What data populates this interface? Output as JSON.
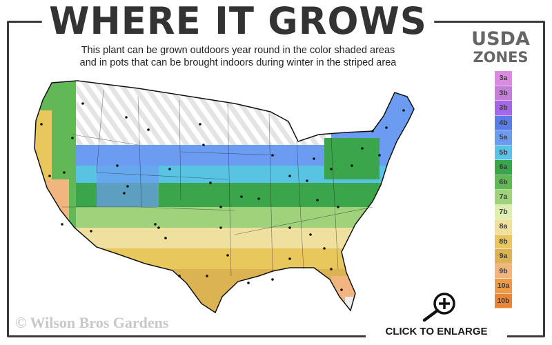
{
  "header": {
    "title": "WHERE IT GROWS",
    "subtitle_line1": "This plant can be grown outdoors year round in the color shaded areas",
    "subtitle_line2": "and in pots that can be brought indoors during winter in the striped area"
  },
  "legend": {
    "title_line1": "USDA",
    "title_line2": "ZONES",
    "zones": [
      {
        "label": "3a",
        "color": "#d98be0"
      },
      {
        "label": "3b",
        "color": "#c47fd6"
      },
      {
        "label": "3b",
        "color": "#a566ee"
      },
      {
        "label": "4b",
        "color": "#5a7be8"
      },
      {
        "label": "5a",
        "color": "#6b9cf2"
      },
      {
        "label": "5b",
        "color": "#58c3e2"
      },
      {
        "label": "6a",
        "color": "#3aa54a"
      },
      {
        "label": "6b",
        "color": "#62b857"
      },
      {
        "label": "7a",
        "color": "#9fd27a"
      },
      {
        "label": "7b",
        "color": "#dceeb0"
      },
      {
        "label": "8a",
        "color": "#efe0a0"
      },
      {
        "label": "8b",
        "color": "#e8c85c"
      },
      {
        "label": "9a",
        "color": "#dbb353"
      },
      {
        "label": "9b",
        "color": "#f1b57f"
      },
      {
        "label": "10a",
        "color": "#ee9b46"
      },
      {
        "label": "10b",
        "color": "#e7863a"
      }
    ]
  },
  "footer": {
    "copyright": "© Wilson Bros Gardens",
    "enlarge_label": "CLICK TO ENLARGE",
    "enlarge_icon": "zoom-in-magnifier-icon"
  }
}
